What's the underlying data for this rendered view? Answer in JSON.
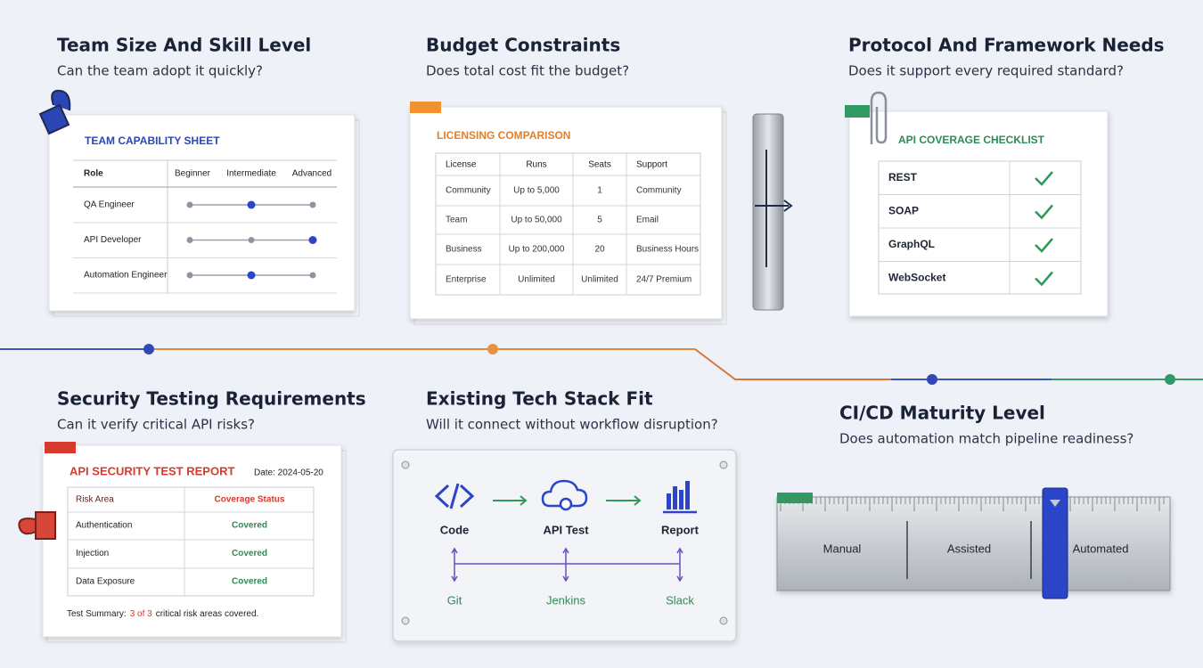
{
  "sections": [
    {
      "title": "Team Size And Skill Level",
      "question": "Can the team adopt it quickly?",
      "sheet": {
        "title": "TEAM CAPABILITY SHEET",
        "columns": [
          "Role",
          "Beginner",
          "Intermediate",
          "Advanced"
        ],
        "rows": [
          {
            "role": "QA Engineer",
            "level": 1
          },
          {
            "role": "API Developer",
            "level": 2
          },
          {
            "role": "Automation Engineer",
            "level": 1
          }
        ]
      }
    },
    {
      "title": "Budget Constraints",
      "question": "Does total cost fit the budget?",
      "table": {
        "title": "LICENSING COMPARISON",
        "columns": [
          "License",
          "Runs",
          "Seats",
          "Support"
        ],
        "rows": [
          [
            "Community",
            "Up to 5,000",
            "1",
            "Community"
          ],
          [
            "Team",
            "Up to 50,000",
            "5",
            "Email"
          ],
          [
            "Business",
            "Up to 200,000",
            "20",
            "Business Hours"
          ],
          [
            "Enterprise",
            "Unlimited",
            "Unlimited",
            "24/7 Premium"
          ]
        ]
      }
    },
    {
      "title": "Protocol And Framework Needs",
      "question": "Does it support every required standard?",
      "checklist": {
        "title": "API COVERAGE CHECKLIST",
        "items": [
          {
            "label": "REST",
            "checked": true
          },
          {
            "label": "SOAP",
            "checked": true
          },
          {
            "label": "GraphQL",
            "checked": true
          },
          {
            "label": "WebSocket",
            "checked": true
          }
        ]
      }
    },
    {
      "title": "Security Testing Requirements",
      "question": "Can it verify critical API risks?",
      "report": {
        "title": "API SECURITY TEST REPORT",
        "date": "Date: 2024-05-20",
        "columns": [
          "Risk Area",
          "Coverage Status"
        ],
        "rows": [
          [
            "Authentication",
            "Covered"
          ],
          [
            "Injection",
            "Covered"
          ],
          [
            "Data Exposure",
            "Covered"
          ]
        ],
        "summary": [
          "Test Summary:",
          "3 of 3",
          "critical risk areas covered."
        ]
      }
    },
    {
      "title": "Existing Tech Stack Fit",
      "question": "Will it connect without workflow disruption?",
      "flow": [
        "Code",
        "API Test",
        "Report"
      ],
      "integrations": [
        "Git",
        "Jenkins",
        "Slack"
      ]
    },
    {
      "title": "CI/CD Maturity Level",
      "question": "Does automation match pipeline readiness?",
      "scale": [
        "Manual",
        "Assisted",
        "Automated"
      ],
      "current": 2
    }
  ]
}
